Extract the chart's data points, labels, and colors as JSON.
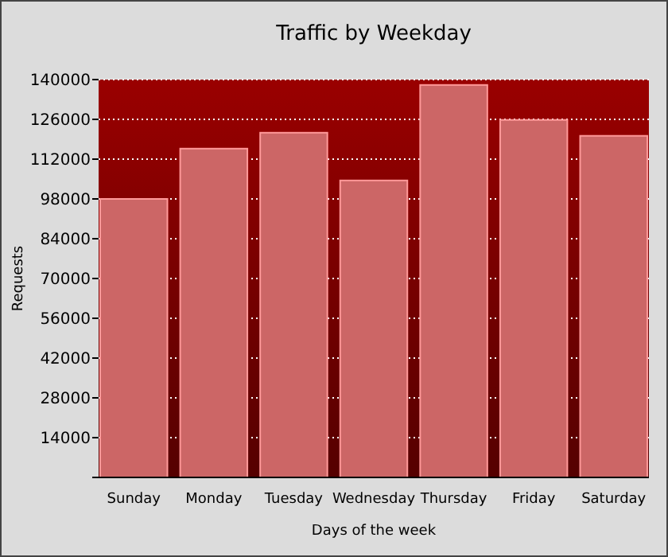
{
  "chart_data": {
    "type": "bar",
    "title": "Traffic by Weekday",
    "xlabel": "Days of the week",
    "ylabel": "Requests",
    "categories": [
      "Sunday",
      "Monday",
      "Tuesday",
      "Wednesday",
      "Thursday",
      "Friday",
      "Saturday"
    ],
    "values": [
      98000,
      115700,
      121300,
      104500,
      138100,
      125800,
      120200
    ],
    "color": "#cc6666",
    "ylim": [
      0,
      140000
    ],
    "yticks": [
      14000,
      28000,
      42000,
      56000,
      70000,
      84000,
      98000,
      112000,
      126000,
      140000
    ],
    "grid": "y"
  }
}
